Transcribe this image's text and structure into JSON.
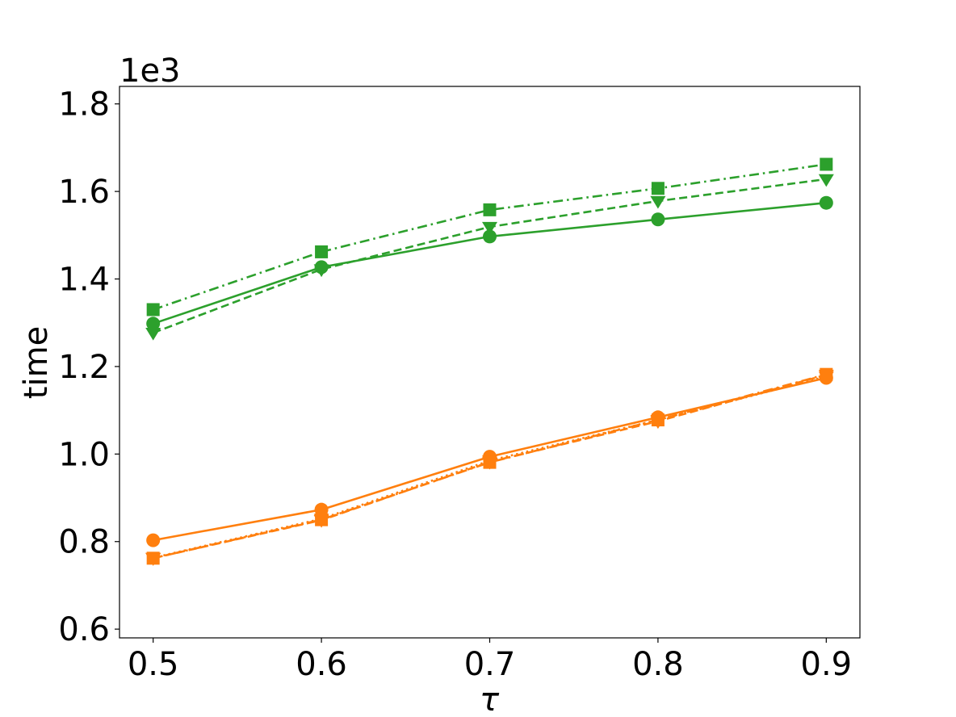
{
  "chart_data": {
    "type": "line",
    "xlabel": "τ",
    "ylabel": "time",
    "y_offset_label": "1e3",
    "xlim": [
      0.48,
      0.92
    ],
    "ylim": [
      0.58,
      1.84
    ],
    "x_ticks": [
      "0.5",
      "0.6",
      "0.7",
      "0.8",
      "0.9"
    ],
    "y_ticks": [
      "0.6",
      "0.8",
      "1.0",
      "1.2",
      "1.4",
      "1.6",
      "1.8"
    ],
    "grid": false,
    "x": [
      0.5,
      0.6,
      0.7,
      0.8,
      0.9
    ],
    "series": [
      {
        "color": "#2ca02c",
        "linestyle": "solid",
        "marker": "circle",
        "values": [
          1.298,
          1.427,
          1.497,
          1.536,
          1.574
        ]
      },
      {
        "color": "#2ca02c",
        "linestyle": "dashed",
        "marker": "triangle-down",
        "values": [
          1.277,
          1.422,
          1.519,
          1.578,
          1.628
        ]
      },
      {
        "color": "#2ca02c",
        "linestyle": "dashdot",
        "marker": "square",
        "values": [
          1.33,
          1.462,
          1.558,
          1.607,
          1.662
        ]
      },
      {
        "color": "#ff7f0e",
        "linestyle": "solid",
        "marker": "circle",
        "values": [
          0.803,
          0.873,
          0.994,
          1.084,
          1.174
        ]
      },
      {
        "color": "#ff7f0e",
        "linestyle": "dashed",
        "marker": "triangle-down",
        "values": [
          0.762,
          0.849,
          0.982,
          1.075,
          1.181
        ]
      },
      {
        "color": "#ff7f0e",
        "linestyle": "dotted",
        "marker": "triangle-down",
        "values": [
          0.763,
          0.852,
          0.985,
          1.078,
          1.177
        ]
      },
      {
        "color": "#ff7f0e",
        "linestyle": "dashdot",
        "marker": "square",
        "values": [
          0.762,
          0.85,
          0.981,
          1.078,
          1.182
        ]
      }
    ]
  }
}
